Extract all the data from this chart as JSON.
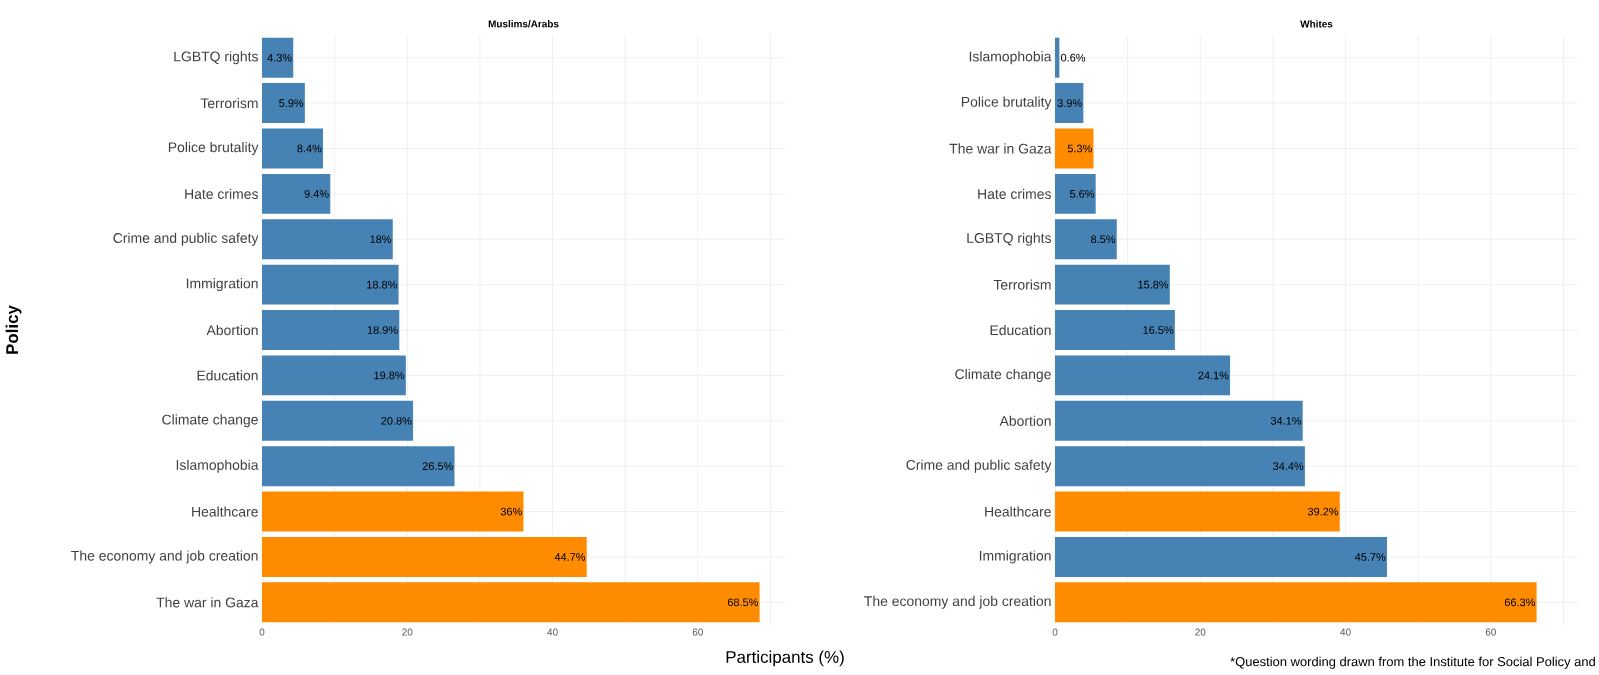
{
  "chart_data": [
    {
      "type": "bar",
      "orientation": "horizontal",
      "title": "Muslims/Arabs",
      "xlabel": "Participants (%)",
      "ylabel": "Policy",
      "categories": [
        "LGBTQ rights",
        "Terrorism",
        "Police brutality",
        "Hate crimes",
        "Crime and public safety",
        "Immigration",
        "Abortion",
        "Education",
        "Climate change",
        "Islamophobia",
        "Healthcare",
        "The economy and job creation",
        "The war in Gaza"
      ],
      "values": [
        4.3,
        5.9,
        8.4,
        9.4,
        18,
        18.8,
        18.9,
        19.8,
        20.8,
        26.5,
        36,
        44.7,
        68.5
      ],
      "colors": [
        "#4682b4",
        "#4682b4",
        "#4682b4",
        "#4682b4",
        "#4682b4",
        "#4682b4",
        "#4682b4",
        "#4682b4",
        "#4682b4",
        "#4682b4",
        "#ff8c00",
        "#ff8c00",
        "#ff8c00"
      ],
      "value_labels": [
        "4.3%",
        "5.9%",
        "8.4%",
        "9.4%",
        "18%",
        "18.8%",
        "18.9%",
        "19.8%",
        "20.8%",
        "26.5%",
        "36%",
        "44.7%",
        "68.5%"
      ],
      "xlim": [
        0,
        72
      ],
      "xticks": [
        0,
        {
          "value": 10,
          "label": null
        },
        20,
        {
          "value": 30,
          "label": null
        },
        40,
        {
          "value": 50,
          "label": null
        },
        60,
        {
          "value": 70,
          "label": null
        }
      ],
      "grid": true
    },
    {
      "type": "bar",
      "orientation": "horizontal",
      "title": "Whites",
      "categories": [
        "Islamophobia",
        "Police brutality",
        "The war in Gaza",
        "Hate crimes",
        "LGBTQ rights",
        "Terrorism",
        "Education",
        "Climate change",
        "Abortion",
        "Crime and public safety",
        "Healthcare",
        "Immigration",
        "The economy and job creation"
      ],
      "values": [
        0.6,
        3.9,
        5.3,
        5.6,
        8.5,
        15.8,
        16.5,
        24.1,
        34.1,
        34.4,
        39.2,
        45.7,
        66.3
      ],
      "colors": [
        "#4682b4",
        "#4682b4",
        "#ff8c00",
        "#4682b4",
        "#4682b4",
        "#4682b4",
        "#4682b4",
        "#4682b4",
        "#4682b4",
        "#4682b4",
        "#ff8c00",
        "#4682b4",
        "#ff8c00"
      ],
      "value_labels": [
        "0.6%",
        "3.9%",
        "5.3%",
        "5.6%",
        "8.5%",
        "15.8%",
        "16.5%",
        "24.1%",
        "34.1%",
        "34.4%",
        "39.2%",
        "45.7%",
        "66.3%"
      ],
      "xlim": [
        0,
        72
      ],
      "xticks": [
        0,
        {
          "value": 10,
          "label": null
        },
        20,
        {
          "value": 30,
          "label": null
        },
        40,
        {
          "value": 50,
          "label": null
        },
        60,
        {
          "value": 70,
          "label": null
        }
      ],
      "grid": true,
      "annotations": [
        "*Question wording drawn from the Institute for Social Policy and"
      ]
    }
  ]
}
